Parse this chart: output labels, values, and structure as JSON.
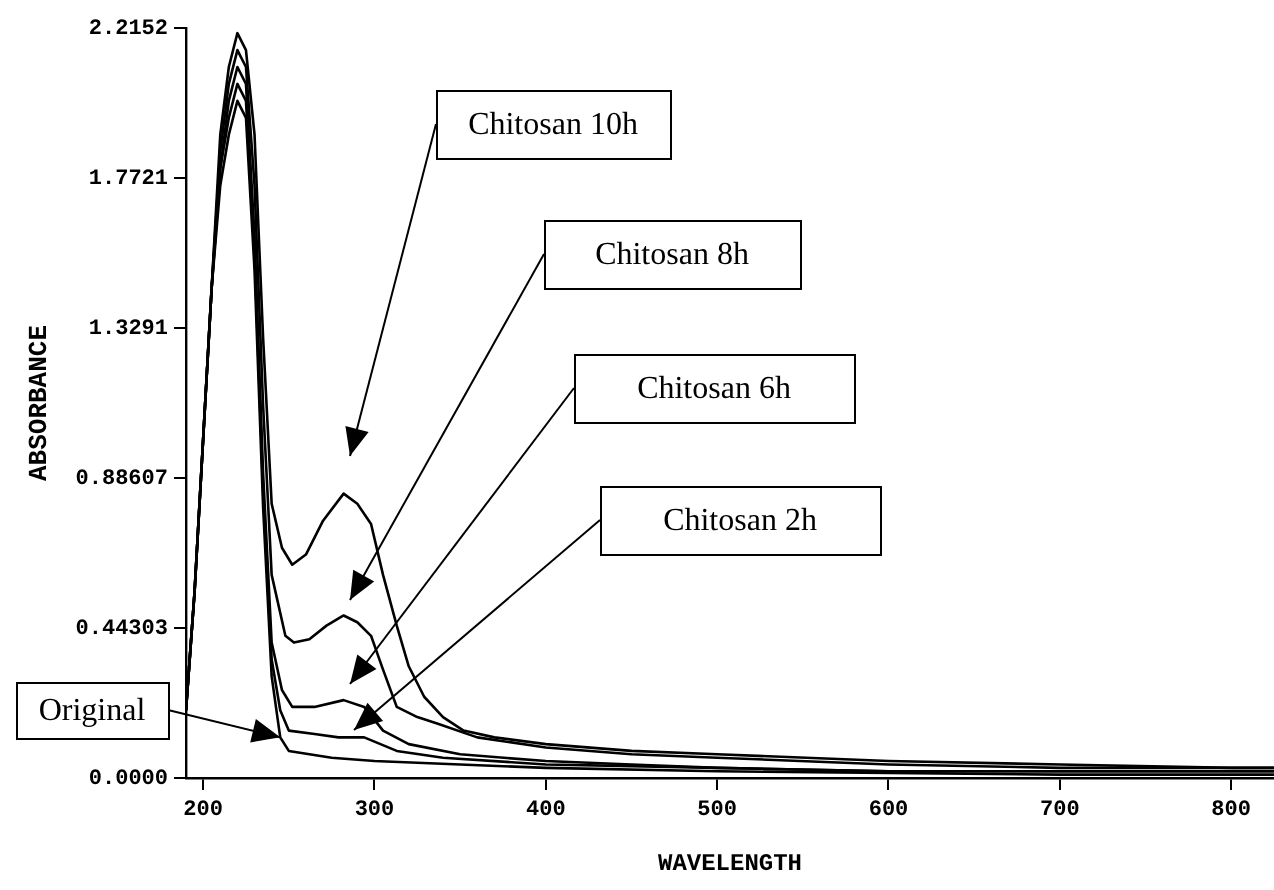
{
  "chart_data": {
    "type": "line",
    "xlabel": "WAVELENGTH",
    "ylabel": "ABSORBANCE",
    "xlim": [
      190,
      825
    ],
    "ylim": [
      0,
      2.2152
    ],
    "xticks": [
      200,
      300,
      400,
      500,
      600,
      700,
      800
    ],
    "yticks": [
      {
        "value": 0,
        "label": "0.0000"
      },
      0.44303,
      0.88607,
      1.3291,
      1.7721,
      2.2152
    ],
    "grid": false,
    "legend": false,
    "marker": "none",
    "line_style": "solid",
    "series": [
      {
        "color": "#000000",
        "x": [
          190,
          195,
          200,
          205,
          210,
          215,
          220,
          225,
          230,
          235,
          240,
          246,
          252,
          260,
          270,
          282,
          290,
          298,
          305,
          313,
          320,
          329,
          340,
          352,
          370,
          400,
          450,
          500,
          600,
          700,
          800,
          825
        ],
        "values": [
          0.2,
          0.55,
          1.0,
          1.45,
          1.9,
          2.1,
          2.2,
          2.15,
          1.9,
          1.3,
          0.81,
          0.68,
          0.63,
          0.66,
          0.76,
          0.84,
          0.81,
          0.75,
          0.6,
          0.45,
          0.33,
          0.24,
          0.18,
          0.14,
          0.12,
          0.1,
          0.08,
          0.07,
          0.05,
          0.04,
          0.03,
          0.03
        ]
      },
      {
        "color": "#000000",
        "x": [
          190,
          195,
          200,
          205,
          210,
          215,
          220,
          225,
          230,
          235,
          240,
          248,
          253,
          262,
          272,
          282,
          290,
          298,
          305,
          313,
          325,
          337,
          360,
          400,
          450,
          500,
          600,
          700,
          800,
          825
        ],
        "values": [
          0.2,
          0.55,
          1.0,
          1.45,
          1.85,
          2.05,
          2.15,
          2.1,
          1.75,
          1.1,
          0.6,
          0.42,
          0.4,
          0.41,
          0.45,
          0.48,
          0.46,
          0.42,
          0.32,
          0.21,
          0.18,
          0.16,
          0.12,
          0.09,
          0.07,
          0.06,
          0.04,
          0.03,
          0.03,
          0.03
        ]
      },
      {
        "color": "#000000",
        "x": [
          190,
          195,
          200,
          205,
          210,
          215,
          220,
          225,
          230,
          235,
          240,
          246,
          252,
          265,
          282,
          294,
          305,
          320,
          350,
          400,
          450,
          500,
          600,
          700,
          800,
          825
        ],
        "values": [
          0.2,
          0.55,
          1.0,
          1.45,
          1.8,
          2.0,
          2.1,
          2.05,
          1.6,
          0.9,
          0.4,
          0.26,
          0.21,
          0.21,
          0.23,
          0.21,
          0.14,
          0.1,
          0.07,
          0.05,
          0.04,
          0.03,
          0.02,
          0.02,
          0.02,
          0.02
        ]
      },
      {
        "color": "#000000",
        "x": [
          190,
          195,
          200,
          205,
          210,
          215,
          220,
          225,
          230,
          235,
          240,
          245,
          250,
          265,
          279,
          294,
          313,
          340,
          400,
          450,
          500,
          600,
          700,
          800,
          825
        ],
        "values": [
          0.2,
          0.55,
          1.0,
          1.45,
          1.8,
          1.95,
          2.05,
          2.0,
          1.55,
          0.85,
          0.35,
          0.2,
          0.14,
          0.13,
          0.12,
          0.12,
          0.08,
          0.06,
          0.04,
          0.035,
          0.03,
          0.02,
          0.02,
          0.02,
          0.02
        ]
      },
      {
        "color": "#000000",
        "x": [
          190,
          195,
          200,
          205,
          210,
          215,
          220,
          225,
          230,
          235,
          240,
          245,
          250,
          275,
          300,
          350,
          400,
          500,
          600,
          700,
          800,
          825
        ],
        "values": [
          0.2,
          0.55,
          1.0,
          1.45,
          1.75,
          1.9,
          2.0,
          1.95,
          1.5,
          0.8,
          0.3,
          0.12,
          0.08,
          0.06,
          0.05,
          0.04,
          0.03,
          0.02,
          0.015,
          0.01,
          0.01,
          0.01
        ]
      }
    ],
    "annotations": [
      "Chitosan 10h",
      "Chitosan 8h",
      "Chitosan 6h",
      "Chitosan 2h",
      {
        "text": "Original",
        "x": 245,
        "y": 0.12
      }
    ]
  }
}
